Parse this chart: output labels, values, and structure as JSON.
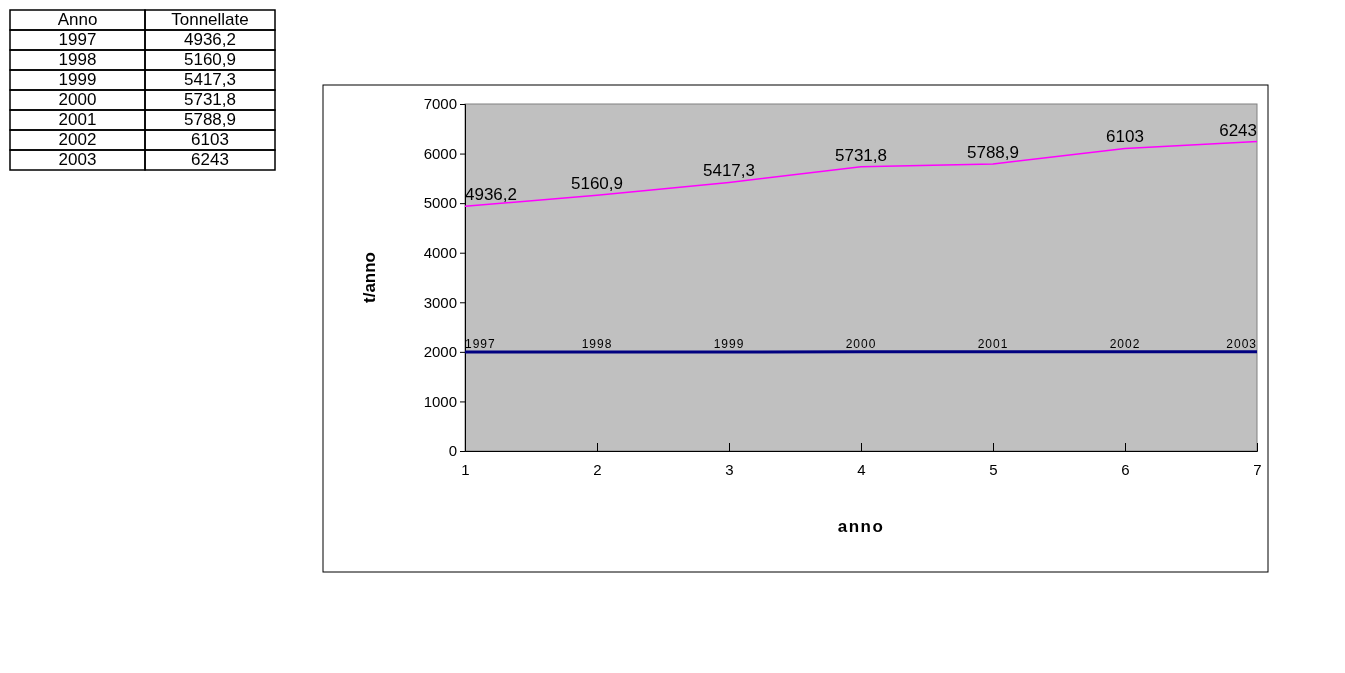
{
  "chart_data": {
    "type": "line",
    "xlabel": "anno",
    "ylabel": "t/anno",
    "annotations": [
      "Anno",
      "Tonnellate"
    ],
    "x": [
      1,
      2,
      3,
      4,
      5,
      6,
      7
    ],
    "series": [
      {
        "color": "#ff00ff",
        "values": [
          4936.2,
          5160.9,
          5417.3,
          5731.8,
          5788.9,
          6103,
          6243
        ],
        "value_labels": [
          "4936,2",
          "5160,9",
          "5417,3",
          "5731,8",
          "5788,9",
          "6103",
          "6243"
        ]
      },
      {
        "color": "#000080",
        "values": [
          1997,
          1998,
          1999,
          2000,
          2001,
          2002,
          2003
        ],
        "value_labels": [
          "1997",
          "1998",
          "1999",
          "2000",
          "2001",
          "2002",
          "2003"
        ]
      }
    ],
    "xlim": [
      1,
      7
    ],
    "xticks": [
      1,
      2,
      3,
      4,
      5,
      6,
      7
    ],
    "ylim": [
      0,
      7000
    ],
    "yticks": [
      0,
      1000,
      2000,
      3000,
      4000,
      5000,
      6000,
      7000
    ],
    "grid": false,
    "marker": "none",
    "line_style": "solid"
  }
}
